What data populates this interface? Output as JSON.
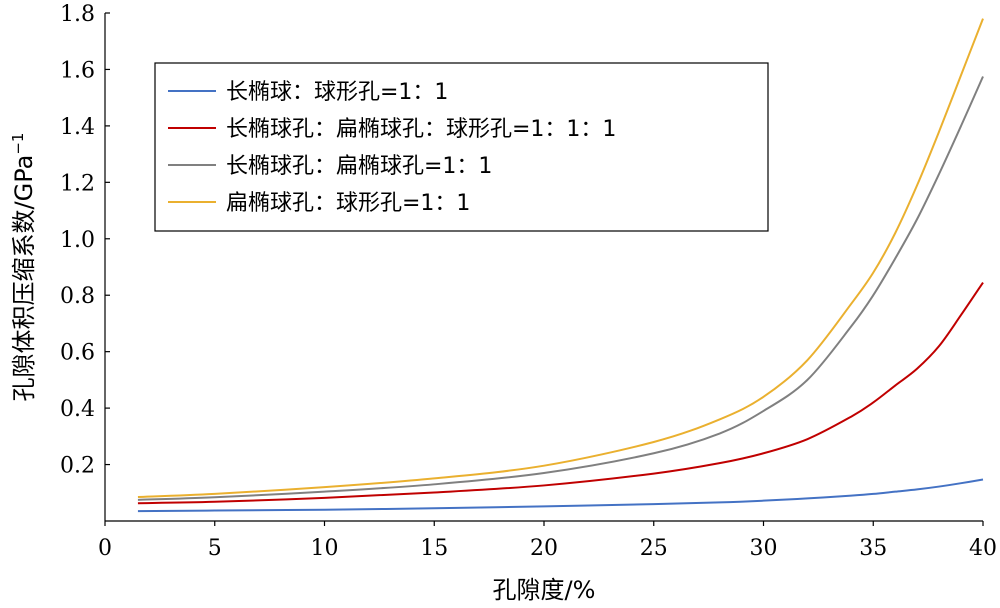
{
  "chart_data": {
    "type": "line",
    "xlabel": "孔隙度/%",
    "ylabel": "孔隙体积压缩系数/GPa",
    "ylabel_sup": "−1",
    "xlim": [
      0,
      40
    ],
    "ylim": [
      0,
      1.8
    ],
    "xticks": [
      0,
      5,
      10,
      15,
      20,
      25,
      30,
      35,
      40
    ],
    "xtick_labels": [
      "0",
      "5",
      "10",
      "15",
      "20",
      "25",
      "30",
      "35",
      "40"
    ],
    "yticks": [
      0.2,
      0.4,
      0.6,
      0.8,
      1.0,
      1.2,
      1.4,
      1.6,
      1.8
    ],
    "ytick_labels": [
      "0.2",
      "0.4",
      "0.6",
      "0.8",
      "1.0",
      "1.2",
      "1.4",
      "1.6",
      "1.8"
    ],
    "grid": false,
    "legend_position": "upper-left",
    "x": [
      1.5,
      5,
      10,
      15,
      20,
      25,
      28,
      30,
      32,
      34,
      35,
      36,
      37,
      38,
      39,
      40
    ],
    "series": [
      {
        "name": "长椭球：球形孔=1：1",
        "color": "#4472c4",
        "values": [
          0.035,
          0.037,
          0.04,
          0.045,
          0.052,
          0.06,
          0.066,
          0.072,
          0.08,
          0.09,
          0.096,
          0.104,
          0.112,
          0.122,
          0.134,
          0.147
        ]
      },
      {
        "name": "长椭球孔：扁椭球孔：球形孔=1：1：1",
        "color": "#c00000",
        "values": [
          0.063,
          0.068,
          0.082,
          0.101,
          0.126,
          0.168,
          0.205,
          0.24,
          0.29,
          0.37,
          0.42,
          0.48,
          0.54,
          0.62,
          0.73,
          0.845
        ]
      },
      {
        "name": "长椭球孔：扁椭球孔=1：1",
        "color": "#808080",
        "values": [
          0.075,
          0.084,
          0.104,
          0.13,
          0.17,
          0.24,
          0.31,
          0.39,
          0.5,
          0.69,
          0.8,
          0.93,
          1.07,
          1.23,
          1.4,
          1.575
        ]
      },
      {
        "name": "扁椭球孔：球形孔=1：1",
        "color": "#eab02f",
        "values": [
          0.085,
          0.096,
          0.12,
          0.151,
          0.196,
          0.28,
          0.36,
          0.44,
          0.57,
          0.77,
          0.88,
          1.02,
          1.19,
          1.38,
          1.58,
          1.78
        ]
      }
    ]
  }
}
